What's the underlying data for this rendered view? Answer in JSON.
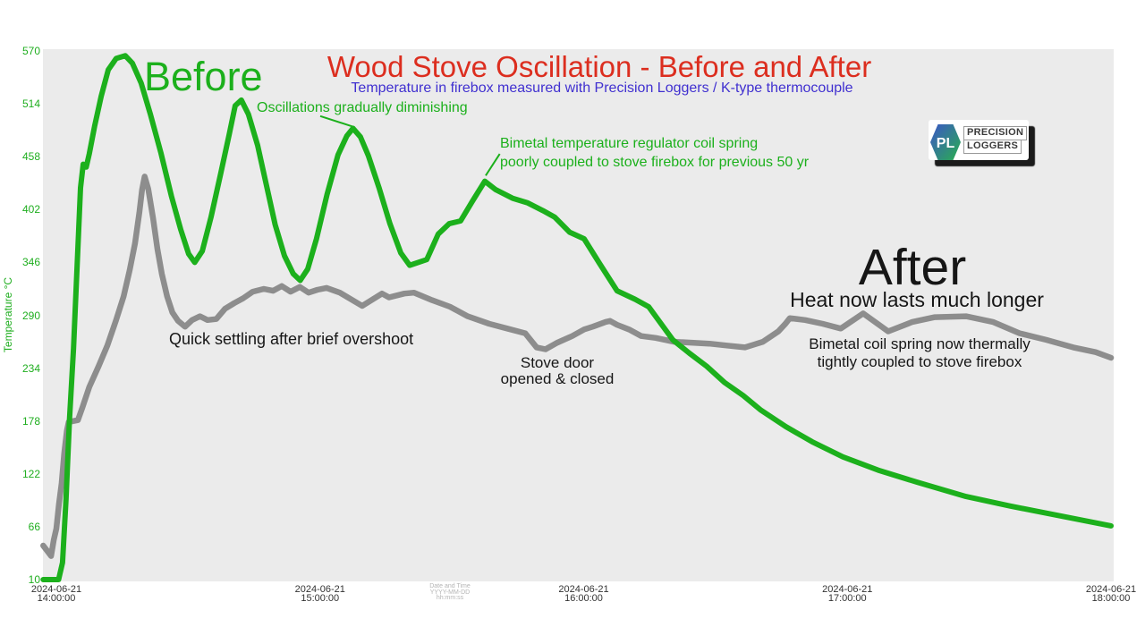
{
  "header": {
    "title": "Wood Stove Oscillation - Before and After",
    "subtitle": "Temperature in firebox measured with Precision Loggers / K-type thermocouple"
  },
  "logo": {
    "initials": "PL",
    "word1": "PRECISION",
    "word2": "LOGGERS"
  },
  "annotations": {
    "before_label": "Before",
    "after_label": "After",
    "oscillations": "Oscillations gradually diminishing",
    "bimetal_before_line1": "Bimetal temperature regulator coil spring",
    "bimetal_before_line2": "poorly coupled to stove firebox for previous 50 yr",
    "quick_settling": "Quick settling after brief overshoot",
    "stove_door_line1": "Stove door",
    "stove_door_line2": "opened & closed",
    "heat_lasts": "Heat now lasts much longer",
    "bimetal_after_line1": "Bimetal coil spring now thermally",
    "bimetal_after_line2": "tightly coupled to stove firebox"
  },
  "colors": {
    "title_red": "#dc2e1f",
    "subtitle_blue": "#4030d0",
    "before_green": "#1cb01c",
    "after_gray": "#8d8d8d",
    "plot_background": "#ebebeb",
    "text_black": "#161616"
  },
  "chart_data": {
    "type": "line",
    "title": "Wood Stove Oscillation - Before and After",
    "subtitle": "Temperature in firebox measured with Precision Loggers / K-type thermocouple",
    "ylabel": "Temperature °C",
    "xlabel_lines": [
      "Date and Time",
      "YYYY-MM-DD",
      "hh:mm:ss"
    ],
    "grid": false,
    "legend": "none (series labeled by on-chart text Before / After)",
    "y_range": [
      10,
      570
    ],
    "y_ticks": [
      570,
      514,
      458,
      402,
      346,
      290,
      234,
      178,
      122,
      66,
      10
    ],
    "x_unit": "minutes after 2024-06-21 14:00:00",
    "x_range_minutes": [
      -3,
      240
    ],
    "x_ticks": [
      {
        "minutes": 0,
        "date": "2024-06-21",
        "time": "14:00:00"
      },
      {
        "minutes": 60,
        "date": "2024-06-21",
        "time": "15:00:00"
      },
      {
        "minutes": 120,
        "date": "2024-06-21",
        "time": "16:00:00"
      },
      {
        "minutes": 180,
        "date": "2024-06-21",
        "time": "17:00:00"
      },
      {
        "minutes": 240,
        "date": "2024-06-21",
        "time": "18:00:00"
      }
    ],
    "series": [
      {
        "name": "After (bimetal coil tightly coupled)",
        "color": "#8d8d8d",
        "stroke_width": 6.5,
        "points": [
          [
            -3,
            46
          ],
          [
            -2,
            40
          ],
          [
            -1.2,
            35
          ],
          [
            -0.6,
            52
          ],
          [
            0,
            64
          ],
          [
            0.6,
            90
          ],
          [
            1.2,
            112
          ],
          [
            1.8,
            144
          ],
          [
            2.4,
            168
          ],
          [
            2.8,
            177
          ],
          [
            4.9,
            179
          ],
          [
            5.9,
            192
          ],
          [
            7.5,
            214
          ],
          [
            9.6,
            236
          ],
          [
            11.6,
            258
          ],
          [
            13.6,
            285
          ],
          [
            15.3,
            310
          ],
          [
            16.7,
            338
          ],
          [
            17.9,
            366
          ],
          [
            18.9,
            399
          ],
          [
            19.5,
            423
          ],
          [
            20.1,
            437
          ],
          [
            20.9,
            424
          ],
          [
            22,
            393
          ],
          [
            23,
            360
          ],
          [
            24,
            334
          ],
          [
            25.2,
            310
          ],
          [
            26.4,
            293
          ],
          [
            27.7,
            284
          ],
          [
            29.3,
            278
          ],
          [
            30.9,
            285
          ],
          [
            32.7,
            289
          ],
          [
            34.4,
            285
          ],
          [
            36.4,
            286
          ],
          [
            38.4,
            297
          ],
          [
            40.5,
            303
          ],
          [
            42.5,
            308
          ],
          [
            44.7,
            315
          ],
          [
            47.2,
            318
          ],
          [
            49.3,
            316
          ],
          [
            51.3,
            321
          ],
          [
            53.3,
            315
          ],
          [
            55.4,
            320
          ],
          [
            57.4,
            314
          ],
          [
            59.4,
            317
          ],
          [
            61.5,
            319
          ],
          [
            64.5,
            314
          ],
          [
            69.6,
            300
          ],
          [
            74.1,
            313
          ],
          [
            75.7,
            309
          ],
          [
            79.2,
            313
          ],
          [
            81.4,
            314
          ],
          [
            85.5,
            306
          ],
          [
            89.6,
            299
          ],
          [
            93.6,
            289
          ],
          [
            98.5,
            281
          ],
          [
            102.6,
            276
          ],
          [
            106.7,
            271
          ],
          [
            107.9,
            264
          ],
          [
            109.3,
            256
          ],
          [
            111.3,
            254
          ],
          [
            114,
            261
          ],
          [
            117.4,
            268
          ],
          [
            120.1,
            275
          ],
          [
            122.1,
            278
          ],
          [
            125,
            283
          ],
          [
            126,
            284
          ],
          [
            127.6,
            280
          ],
          [
            130.3,
            275
          ],
          [
            133.1,
            268
          ],
          [
            136.4,
            266
          ],
          [
            140.5,
            262
          ],
          [
            144.5,
            261
          ],
          [
            148.6,
            260
          ],
          [
            152.6,
            258
          ],
          [
            156.7,
            256
          ],
          [
            158.8,
            259
          ],
          [
            160.8,
            262
          ],
          [
            164.3,
            273
          ],
          [
            165.9,
            281
          ],
          [
            166.9,
            287
          ],
          [
            170.4,
            285
          ],
          [
            174.4,
            281
          ],
          [
            178.5,
            276
          ],
          [
            183.6,
            292
          ],
          [
            189.3,
            273
          ],
          [
            194.8,
            283
          ],
          [
            199.9,
            288
          ],
          [
            207,
            289
          ],
          [
            213.1,
            283
          ],
          [
            219.2,
            271
          ],
          [
            225.3,
            264
          ],
          [
            231.4,
            256
          ],
          [
            236.5,
            251
          ],
          [
            240,
            245
          ]
        ]
      },
      {
        "name": "Before (bimetal coil poorly coupled)",
        "color": "#1cb01c",
        "stroke_width": 6,
        "points": [
          [
            -3,
            10
          ],
          [
            0.5,
            10
          ],
          [
            1.4,
            28
          ],
          [
            2.2,
            95
          ],
          [
            3,
            180
          ],
          [
            3.9,
            255
          ],
          [
            4.7,
            340
          ],
          [
            5.5,
            425
          ],
          [
            6.1,
            450
          ],
          [
            6.8,
            447
          ],
          [
            7.5,
            461
          ],
          [
            8.7,
            490
          ],
          [
            10.2,
            522
          ],
          [
            11.8,
            550
          ],
          [
            13.6,
            562
          ],
          [
            15.7,
            565
          ],
          [
            17.3,
            557
          ],
          [
            19.3,
            536
          ],
          [
            21.4,
            503
          ],
          [
            23.8,
            462
          ],
          [
            26.2,
            416
          ],
          [
            28.3,
            381
          ],
          [
            30.1,
            355
          ],
          [
            31.5,
            346
          ],
          [
            33.2,
            358
          ],
          [
            35.2,
            394
          ],
          [
            37.4,
            440
          ],
          [
            39.3,
            481
          ],
          [
            40.7,
            512
          ],
          [
            42.1,
            518
          ],
          [
            43.7,
            503
          ],
          [
            45.8,
            470
          ],
          [
            47.8,
            428
          ],
          [
            49.8,
            386
          ],
          [
            51.9,
            353
          ],
          [
            53.9,
            334
          ],
          [
            55.5,
            327
          ],
          [
            57.2,
            339
          ],
          [
            59.2,
            371
          ],
          [
            61.6,
            418
          ],
          [
            64.1,
            460
          ],
          [
            66.1,
            480
          ],
          [
            67.5,
            488
          ],
          [
            69.2,
            479
          ],
          [
            71,
            459
          ],
          [
            73.5,
            424
          ],
          [
            75.9,
            387
          ],
          [
            78.4,
            356
          ],
          [
            80.4,
            343
          ],
          [
            84.3,
            349
          ],
          [
            86.9,
            376
          ],
          [
            89.4,
            387
          ],
          [
            92,
            390
          ],
          [
            94.7,
            411
          ],
          [
            97.5,
            432
          ],
          [
            100,
            423
          ],
          [
            103.8,
            414
          ],
          [
            107.3,
            409
          ],
          [
            110.7,
            401
          ],
          [
            113.4,
            394
          ],
          [
            116.8,
            378
          ],
          [
            120.1,
            371
          ],
          [
            123.6,
            345
          ],
          [
            127.6,
            316
          ],
          [
            131.7,
            307
          ],
          [
            134.8,
            299
          ],
          [
            140.3,
            264
          ],
          [
            144,
            250
          ],
          [
            148,
            236
          ],
          [
            152,
            219
          ],
          [
            156.3,
            205
          ],
          [
            160.2,
            190
          ],
          [
            166,
            172
          ],
          [
            172,
            156
          ],
          [
            179,
            140
          ],
          [
            187,
            126
          ],
          [
            196,
            113
          ],
          [
            207,
            98
          ],
          [
            217,
            88
          ],
          [
            228,
            78
          ],
          [
            240,
            67
          ]
        ]
      }
    ],
    "leader_lines": [
      {
        "label": "oscillations-pointer",
        "from": [
          60.05,
          501
        ],
        "to": [
          67.4,
          490
        ]
      },
      {
        "label": "bimetal-before-pointer",
        "from": [
          100.9,
          461
        ],
        "to": [
          97.7,
          438
        ]
      }
    ]
  }
}
